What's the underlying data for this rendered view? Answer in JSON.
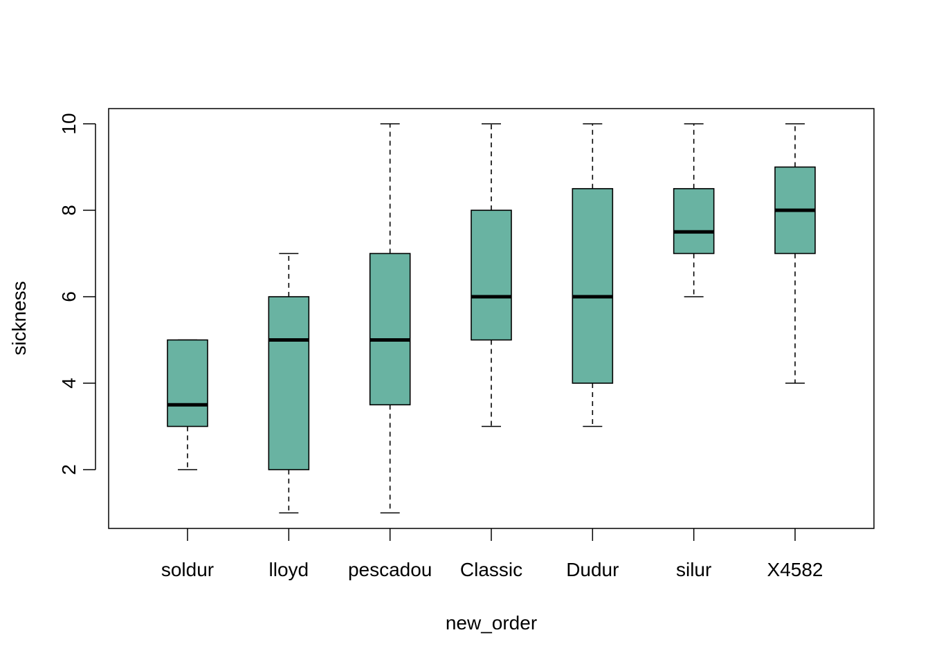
{
  "chart_data": {
    "type": "boxplot",
    "title": "",
    "xlabel": "new_order",
    "ylabel": "sickness",
    "ylim": [
      0.7,
      10.35
    ],
    "yticks": [
      2,
      4,
      6,
      8,
      10
    ],
    "categories": [
      "soldur",
      "lloyd",
      "pescadou",
      "Classic",
      "Dudur",
      "silur",
      "X4582"
    ],
    "boxes": [
      {
        "category": "soldur",
        "whisker_low": 2,
        "q1": 3,
        "median": 3.5,
        "q3": 5,
        "whisker_high": 5
      },
      {
        "category": "lloyd",
        "whisker_low": 1,
        "q1": 2,
        "median": 5,
        "q3": 6,
        "whisker_high": 7
      },
      {
        "category": "pescadou",
        "whisker_low": 1,
        "q1": 3.5,
        "median": 5,
        "q3": 7,
        "whisker_high": 10
      },
      {
        "category": "Classic",
        "whisker_low": 3,
        "q1": 5,
        "median": 6,
        "q3": 8,
        "whisker_high": 10
      },
      {
        "category": "Dudur",
        "whisker_low": 3,
        "q1": 4,
        "median": 6,
        "q3": 8.5,
        "whisker_high": 10
      },
      {
        "category": "silur",
        "whisker_low": 6,
        "q1": 7,
        "median": 7.5,
        "q3": 8.5,
        "whisker_high": 10
      },
      {
        "category": "X4582",
        "whisker_low": 4,
        "q1": 7,
        "median": 8,
        "q3": 9,
        "whisker_high": 10
      }
    ],
    "box_color": "#69b3a2",
    "grid": false,
    "legend": "none"
  }
}
